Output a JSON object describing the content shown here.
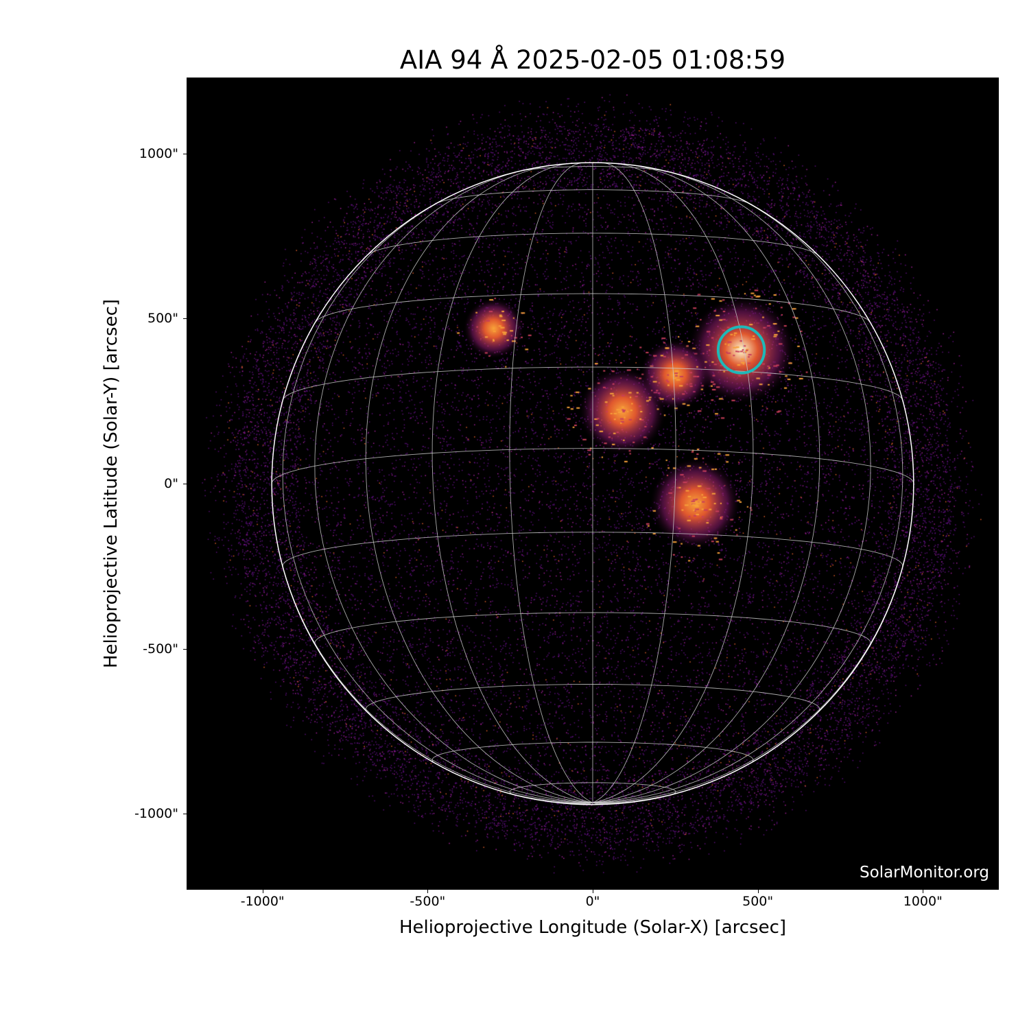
{
  "title": "AIA 94 Å 2025-02-05 01:08:59",
  "xlabel": "Helioprojective Longitude (Solar-X) [arcsec]",
  "ylabel": "Helioprojective Latitude (Solar-Y) [arcsec]",
  "x_ticks": [
    "-1000\"",
    "-500\"",
    "0\"",
    "500\"",
    "1000\""
  ],
  "x_tick_values": [
    -1000,
    -500,
    0,
    500,
    1000
  ],
  "y_ticks": [
    "1000\"",
    "500\"",
    "0\"",
    "-500\"",
    "-1000\""
  ],
  "y_tick_values": [
    1000,
    500,
    0,
    -500,
    -1000
  ],
  "xlim": [
    -1230,
    1230
  ],
  "ylim": [
    -1230,
    1230
  ],
  "watermark": "SolarMonitor.org",
  "solar_radius_arcsec": 972,
  "grid_spacing_deg": 15,
  "colormap": "inferno-like (black-purple-orange-yellow)",
  "highlight_circle": {
    "x": 450,
    "y": 405,
    "radius": 70,
    "color": "#1fb8b8"
  },
  "bright_regions": [
    {
      "x": 450,
      "y": 405,
      "intensity": 1.0
    },
    {
      "x": 90,
      "y": 220,
      "intensity": 0.7
    },
    {
      "x": 310,
      "y": -60,
      "intensity": 0.75
    },
    {
      "x": 250,
      "y": 330,
      "intensity": 0.45
    },
    {
      "x": -300,
      "y": 470,
      "intensity": 0.3
    }
  ],
  "colors": {
    "background": "#000000",
    "grid": "#c8c8c8",
    "limb": "#ffffff",
    "emission": "#8a1a9a"
  }
}
